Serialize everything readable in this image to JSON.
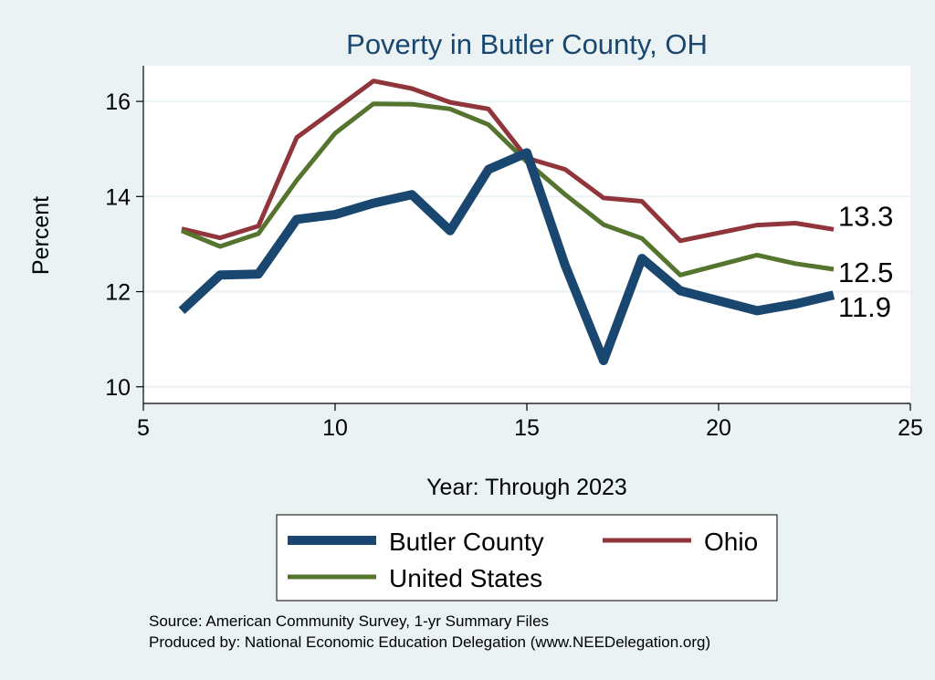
{
  "chart_data": {
    "type": "line",
    "title": "Poverty in Butler County, OH",
    "xlabel": "Year: Through 2023",
    "ylabel": "Percent",
    "xlim": [
      5,
      25
    ],
    "ylim": [
      9.65,
      16.75
    ],
    "xticks": [
      5,
      10,
      15,
      20,
      25
    ],
    "yticks": [
      10,
      12,
      14,
      16
    ],
    "grid": true,
    "legend_position": "bottom",
    "series": [
      {
        "name": "Butler County",
        "color": "#1a476f",
        "x": [
          6,
          7,
          8,
          9,
          10,
          11,
          12,
          13,
          14,
          15,
          16,
          17,
          18,
          19,
          21,
          22,
          23
        ],
        "values": [
          11.6,
          12.35,
          12.37,
          13.52,
          13.62,
          13.86,
          14.04,
          13.28,
          14.57,
          14.92,
          12.55,
          10.55,
          12.7,
          12.02,
          11.6,
          11.74,
          11.93
        ],
        "end_label": "11.9"
      },
      {
        "name": "Ohio",
        "color": "#90353b",
        "x": [
          6,
          7,
          8,
          9,
          10,
          11,
          12,
          13,
          14,
          15,
          16,
          17,
          18,
          19,
          21,
          22,
          23
        ],
        "values": [
          13.32,
          13.13,
          13.38,
          15.24,
          15.83,
          16.43,
          16.27,
          15.98,
          15.84,
          14.81,
          14.57,
          13.97,
          13.9,
          13.07,
          13.4,
          13.44,
          13.31
        ],
        "end_label": "13.3"
      },
      {
        "name": "United States",
        "color": "#55752f",
        "x": [
          6,
          7,
          8,
          9,
          10,
          11,
          12,
          13,
          14,
          15,
          16,
          17,
          18,
          19,
          21,
          22,
          23
        ],
        "values": [
          13.28,
          12.95,
          13.22,
          14.34,
          15.33,
          15.95,
          15.94,
          15.84,
          15.51,
          14.73,
          14.04,
          13.41,
          13.12,
          12.35,
          12.77,
          12.59,
          12.47
        ],
        "end_label": "12.5"
      }
    ]
  },
  "footer": {
    "source": "Source: American Community Survey, 1-yr Summary Files",
    "produced": "Produced by: National Economic Education Delegation (www.NEEDelegation.org)"
  }
}
